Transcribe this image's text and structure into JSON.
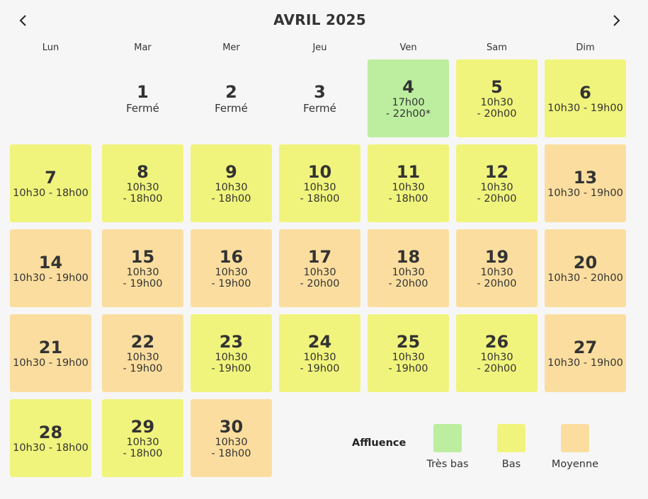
{
  "header": {
    "title": "AVRIL 2025",
    "prev_icon": "chevron-left-icon",
    "next_icon": "chevron-right-icon"
  },
  "weekdays": [
    "Lun",
    "Mar",
    "Mer",
    "Jeu",
    "Ven",
    "Sam",
    "Dim"
  ],
  "days": [
    {
      "day": "1",
      "line1": "Fermé",
      "line2": "",
      "level": "closed"
    },
    {
      "day": "2",
      "line1": "Fermé",
      "line2": "",
      "level": "closed"
    },
    {
      "day": "3",
      "line1": "Fermé",
      "line2": "",
      "level": "closed"
    },
    {
      "day": "4",
      "line1": "17h00",
      "line2": "- 22h00*",
      "level": "verylow"
    },
    {
      "day": "5",
      "line1": "10h30",
      "line2": "- 20h00",
      "level": "low"
    },
    {
      "day": "6",
      "line1": "10h30 - 19h00",
      "line2": "",
      "level": "low"
    },
    {
      "day": "7",
      "line1": "10h30 - 18h00",
      "line2": "",
      "level": "low"
    },
    {
      "day": "8",
      "line1": "10h30",
      "line2": "- 18h00",
      "level": "low"
    },
    {
      "day": "9",
      "line1": "10h30",
      "line2": "- 18h00",
      "level": "low"
    },
    {
      "day": "10",
      "line1": "10h30",
      "line2": "- 18h00",
      "level": "low"
    },
    {
      "day": "11",
      "line1": "10h30",
      "line2": "- 18h00",
      "level": "low"
    },
    {
      "day": "12",
      "line1": "10h30",
      "line2": "- 20h00",
      "level": "low"
    },
    {
      "day": "13",
      "line1": "10h30 - 19h00",
      "line2": "",
      "level": "medium"
    },
    {
      "day": "14",
      "line1": "10h30 - 19h00",
      "line2": "",
      "level": "medium"
    },
    {
      "day": "15",
      "line1": "10h30",
      "line2": "- 19h00",
      "level": "medium"
    },
    {
      "day": "16",
      "line1": "10h30",
      "line2": "- 19h00",
      "level": "medium"
    },
    {
      "day": "17",
      "line1": "10h30",
      "line2": "- 20h00",
      "level": "medium"
    },
    {
      "day": "18",
      "line1": "10h30",
      "line2": "- 20h00",
      "level": "medium"
    },
    {
      "day": "19",
      "line1": "10h30",
      "line2": "- 20h00",
      "level": "medium"
    },
    {
      "day": "20",
      "line1": "10h30 - 20h00",
      "line2": "",
      "level": "medium"
    },
    {
      "day": "21",
      "line1": "10h30 - 19h00",
      "line2": "",
      "level": "medium"
    },
    {
      "day": "22",
      "line1": "10h30",
      "line2": "- 19h00",
      "level": "medium"
    },
    {
      "day": "23",
      "line1": "10h30",
      "line2": "- 19h00",
      "level": "low"
    },
    {
      "day": "24",
      "line1": "10h30",
      "line2": "- 19h00",
      "level": "low"
    },
    {
      "day": "25",
      "line1": "10h30",
      "line2": "- 19h00",
      "level": "low"
    },
    {
      "day": "26",
      "line1": "10h30",
      "line2": "- 20h00",
      "level": "low"
    },
    {
      "day": "27",
      "line1": "10h30 - 19h00",
      "line2": "",
      "level": "medium"
    },
    {
      "day": "28",
      "line1": "10h30 - 18h00",
      "line2": "",
      "level": "low"
    },
    {
      "day": "29",
      "line1": "10h30",
      "line2": "- 18h00",
      "level": "low"
    },
    {
      "day": "30",
      "line1": "10h30",
      "line2": "- 18h00",
      "level": "medium"
    }
  ],
  "legend": {
    "title": "Affluence",
    "items": [
      {
        "label": "Très bas",
        "color": "#bdeea0"
      },
      {
        "label": "Bas",
        "color": "#f0f47c"
      },
      {
        "label": "Moyenne",
        "color": "#fbde9f"
      }
    ]
  }
}
